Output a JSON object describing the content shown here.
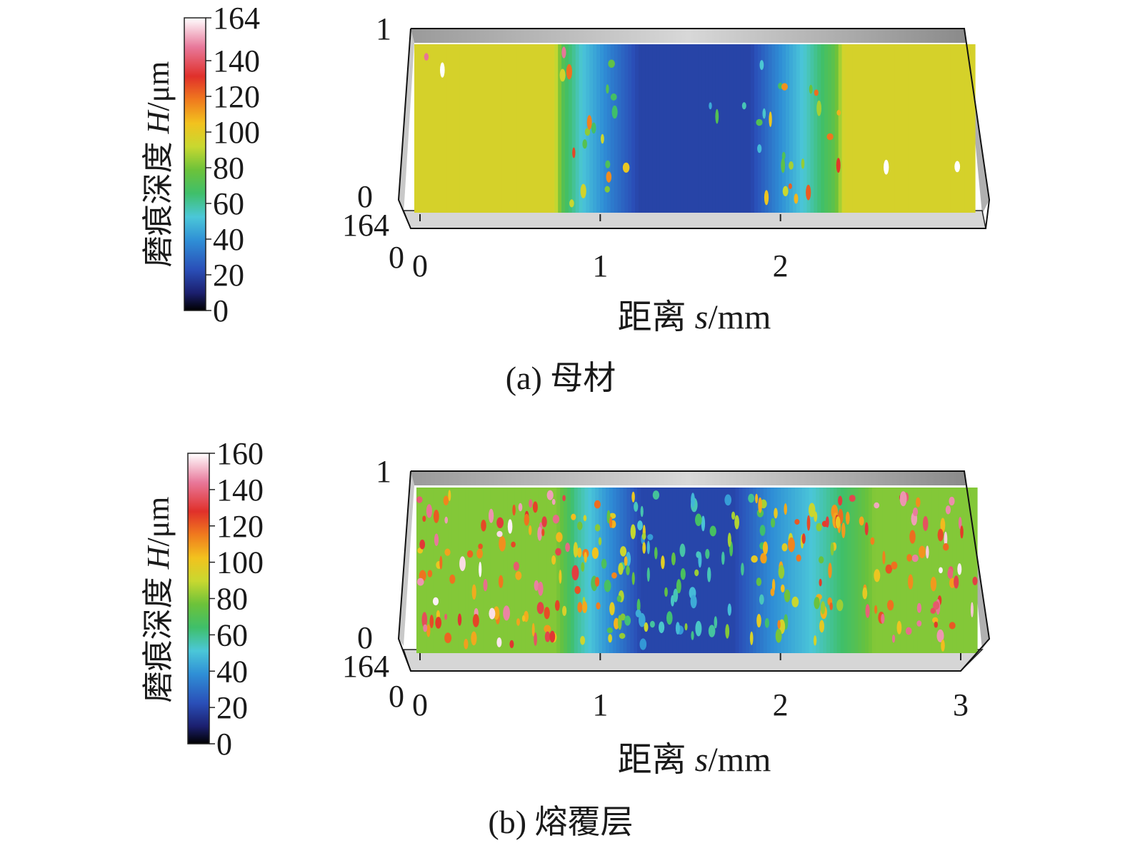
{
  "chart_data": [
    {
      "type": "heatmap",
      "panel": "a",
      "caption": "(a) 母材",
      "xlabel": {
        "prefix": "距离 ",
        "var": "s",
        "unit": "/mm"
      },
      "x_ticks": [
        "0",
        "1",
        "2"
      ],
      "y_ticks": {
        "top": "1",
        "mid": "0"
      },
      "z_label": "164",
      "origin_label": "0",
      "colorbar": {
        "label_prefix": "磨痕深度 ",
        "label_var": "H",
        "label_unit": "/μm",
        "ticks": [
          "164",
          "140",
          "120",
          "100",
          "80",
          "60",
          "40",
          "20",
          "0"
        ],
        "range": [
          0,
          164
        ]
      },
      "x_range": [
        0,
        3
      ],
      "y_range": [
        0,
        1
      ],
      "profile": [
        {
          "x": 0.0,
          "value": 96
        },
        {
          "x": 0.75,
          "value": 96
        },
        {
          "x": 0.8,
          "value": 70
        },
        {
          "x": 0.9,
          "value": 52
        },
        {
          "x": 1.05,
          "value": 35
        },
        {
          "x": 1.2,
          "value": 20
        },
        {
          "x": 1.8,
          "value": 20
        },
        {
          "x": 1.95,
          "value": 38
        },
        {
          "x": 2.1,
          "value": 55
        },
        {
          "x": 2.25,
          "value": 75
        },
        {
          "x": 2.3,
          "value": 96
        },
        {
          "x": 3.0,
          "value": 96
        }
      ]
    },
    {
      "type": "heatmap",
      "panel": "b",
      "caption": "(b) 熔覆层",
      "xlabel": {
        "prefix": "距离 ",
        "var": "s",
        "unit": "/mm"
      },
      "x_ticks": [
        "0",
        "1",
        "2",
        "3"
      ],
      "y_ticks": {
        "top": "1",
        "mid": "0"
      },
      "z_label": "164",
      "origin_label": "0",
      "colorbar": {
        "label_prefix": "磨痕深度 ",
        "label_var": "H",
        "label_unit": "/μm",
        "ticks": [
          "160",
          "140",
          "120",
          "100",
          "80",
          "60",
          "40",
          "20",
          "0"
        ],
        "range": [
          0,
          160
        ]
      },
      "x_range": [
        0,
        3
      ],
      "y_range": [
        0,
        1
      ],
      "profile": [
        {
          "x": 0.0,
          "value": 80
        },
        {
          "x": 0.75,
          "value": 80
        },
        {
          "x": 0.85,
          "value": 60
        },
        {
          "x": 1.0,
          "value": 42
        },
        {
          "x": 1.2,
          "value": 20
        },
        {
          "x": 1.7,
          "value": 20
        },
        {
          "x": 1.9,
          "value": 38
        },
        {
          "x": 2.1,
          "value": 50
        },
        {
          "x": 2.35,
          "value": 70
        },
        {
          "x": 2.45,
          "value": 80
        },
        {
          "x": 3.0,
          "value": 80
        }
      ]
    }
  ]
}
